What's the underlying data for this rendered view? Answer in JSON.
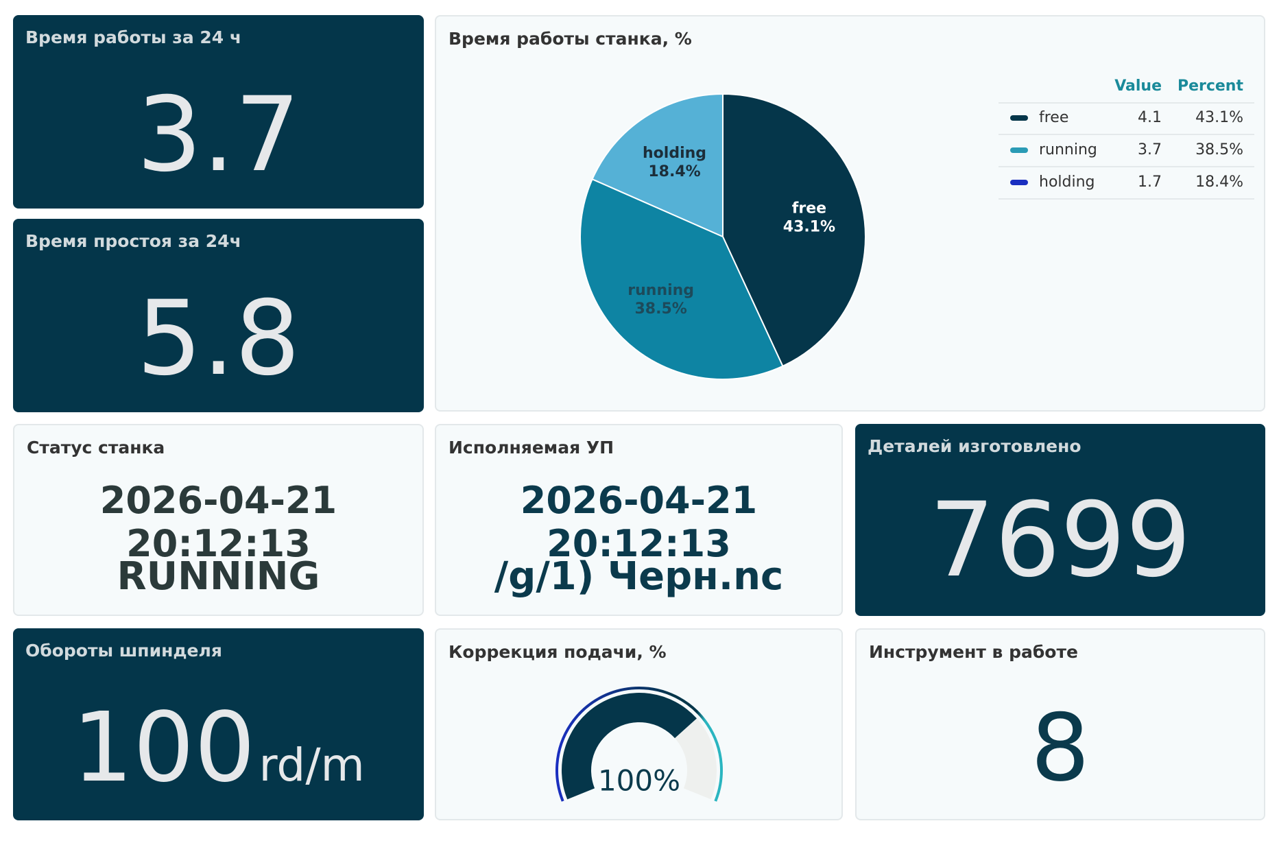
{
  "cards": [
    {
      "title": "Время работы за 24 ч",
      "value": 3.7
    },
    {
      "title": "Время простоя за 24ч",
      "value": 5.8
    },
    {
      "title": "Статус станка",
      "time": "2026-04-21 20:12:13",
      "status": "RUNNING"
    },
    {
      "title": "Исполняемая УП",
      "time": "2026-04-21 20:12:13",
      "program": "/g/1) Черн.nc"
    },
    {
      "title": "Деталей изготовлено",
      "value": 7699
    },
    {
      "title": "Обороты шпинделя",
      "value": 100,
      "unit": "rd/m"
    },
    {
      "title": "Инструмент в работе",
      "value": 8
    }
  ],
  "chart_data": [
    {
      "type": "pie",
      "title": "Время работы станка, %",
      "categories": [
        "free",
        "running",
        "holding"
      ],
      "values": [
        43.1,
        38.5,
        18.4
      ],
      "value_labels": [
        "43.1%",
        "38.5%",
        "18.4%"
      ],
      "colors": [
        "#05364a",
        "#0e84a3",
        "#55b1d6"
      ],
      "legend_colors": [
        "#05364a",
        "#2a9bb5",
        "#1a2fc0"
      ],
      "table_headers": [
        "Value",
        "Percent"
      ],
      "value_column": [
        4.1,
        3.7,
        1.7
      ]
    },
    {
      "type": "gauge",
      "title": "Коррекция подачи, %",
      "value": 100,
      "value_label": "100%",
      "ylim": [
        0,
        140
      ],
      "color": "#05364a"
    }
  ]
}
